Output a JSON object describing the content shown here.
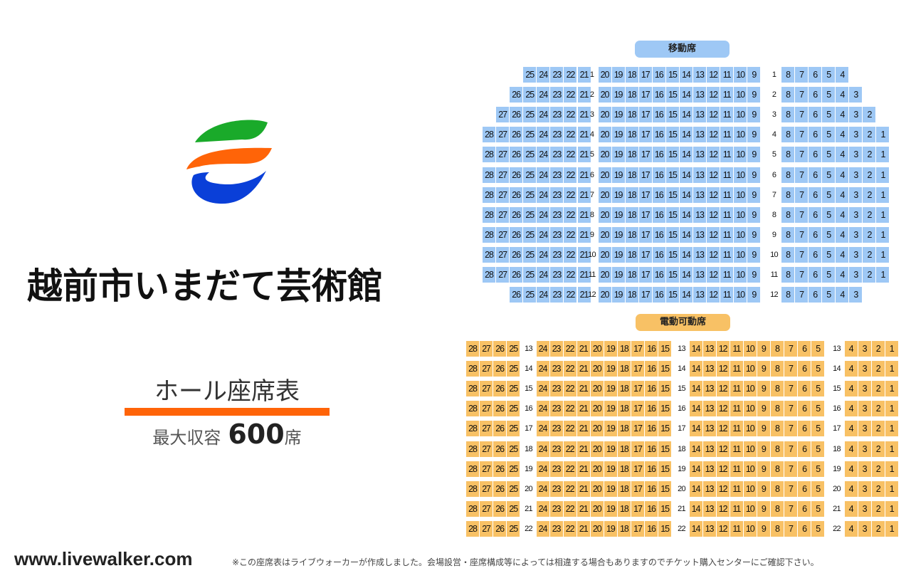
{
  "venue": {
    "name": "越前市いまだて芸術館",
    "chart_heading": "ホール座席表",
    "capacity_label": "最大収容",
    "capacity_number": "600",
    "capacity_unit": "席"
  },
  "colors": {
    "movable_seat": "#9ec8f5",
    "electric_seat": "#f8c165",
    "accent_underline": "#ff6408",
    "logo_green": "#1aaa2a",
    "logo_orange": "#ff6408",
    "logo_blue": "#0a3fd8"
  },
  "logo": {
    "icon": "venue-logo-icon"
  },
  "sections": {
    "movable": {
      "label": "移動席",
      "rows": [
        {
          "row": "1",
          "left": [
            "25",
            "24",
            "23",
            "22",
            "21"
          ],
          "center": [
            "20",
            "19",
            "18",
            "17",
            "16",
            "15",
            "14",
            "13",
            "12",
            "11",
            "10",
            "9"
          ],
          "right": [
            "8",
            "7",
            "6",
            "5",
            "4"
          ]
        },
        {
          "row": "2",
          "left": [
            "26",
            "25",
            "24",
            "23",
            "22",
            "21"
          ],
          "center": [
            "20",
            "19",
            "18",
            "17",
            "16",
            "15",
            "14",
            "13",
            "12",
            "11",
            "10",
            "9"
          ],
          "right": [
            "8",
            "7",
            "6",
            "5",
            "4",
            "3"
          ]
        },
        {
          "row": "3",
          "left": [
            "27",
            "26",
            "25",
            "24",
            "23",
            "22",
            "21"
          ],
          "center": [
            "20",
            "19",
            "18",
            "17",
            "16",
            "15",
            "14",
            "13",
            "12",
            "11",
            "10",
            "9"
          ],
          "right": [
            "8",
            "7",
            "6",
            "5",
            "4",
            "3",
            "2"
          ]
        },
        {
          "row": "4",
          "left": [
            "28",
            "27",
            "26",
            "25",
            "24",
            "23",
            "22",
            "21"
          ],
          "center": [
            "20",
            "19",
            "18",
            "17",
            "16",
            "15",
            "14",
            "13",
            "12",
            "11",
            "10",
            "9"
          ],
          "right": [
            "8",
            "7",
            "6",
            "5",
            "4",
            "3",
            "2",
            "1"
          ]
        },
        {
          "row": "5",
          "left": [
            "28",
            "27",
            "26",
            "25",
            "24",
            "23",
            "22",
            "21"
          ],
          "center": [
            "20",
            "19",
            "18",
            "17",
            "16",
            "15",
            "14",
            "13",
            "12",
            "11",
            "10",
            "9"
          ],
          "right": [
            "8",
            "7",
            "6",
            "5",
            "4",
            "3",
            "2",
            "1"
          ]
        },
        {
          "row": "6",
          "left": [
            "28",
            "27",
            "26",
            "25",
            "24",
            "23",
            "22",
            "21"
          ],
          "center": [
            "20",
            "19",
            "18",
            "17",
            "16",
            "15",
            "14",
            "13",
            "12",
            "11",
            "10",
            "9"
          ],
          "right": [
            "8",
            "7",
            "6",
            "5",
            "4",
            "3",
            "2",
            "1"
          ]
        },
        {
          "row": "7",
          "left": [
            "28",
            "27",
            "26",
            "25",
            "24",
            "23",
            "22",
            "21"
          ],
          "center": [
            "20",
            "19",
            "18",
            "17",
            "16",
            "15",
            "14",
            "13",
            "12",
            "11",
            "10",
            "9"
          ],
          "right": [
            "8",
            "7",
            "6",
            "5",
            "4",
            "3",
            "2",
            "1"
          ]
        },
        {
          "row": "8",
          "left": [
            "28",
            "27",
            "26",
            "25",
            "24",
            "23",
            "22",
            "21"
          ],
          "center": [
            "20",
            "19",
            "18",
            "17",
            "16",
            "15",
            "14",
            "13",
            "12",
            "11",
            "10",
            "9"
          ],
          "right": [
            "8",
            "7",
            "6",
            "5",
            "4",
            "3",
            "2",
            "1"
          ]
        },
        {
          "row": "9",
          "left": [
            "28",
            "27",
            "26",
            "25",
            "24",
            "23",
            "22",
            "21"
          ],
          "center": [
            "20",
            "19",
            "18",
            "17",
            "16",
            "15",
            "14",
            "13",
            "12",
            "11",
            "10",
            "9"
          ],
          "right": [
            "8",
            "7",
            "6",
            "5",
            "4",
            "3",
            "2",
            "1"
          ]
        },
        {
          "row": "10",
          "left": [
            "28",
            "27",
            "26",
            "25",
            "24",
            "23",
            "22",
            "21"
          ],
          "center": [
            "20",
            "19",
            "18",
            "17",
            "16",
            "15",
            "14",
            "13",
            "12",
            "11",
            "10",
            "9"
          ],
          "right": [
            "8",
            "7",
            "6",
            "5",
            "4",
            "3",
            "2",
            "1"
          ]
        },
        {
          "row": "11",
          "left": [
            "28",
            "27",
            "26",
            "25",
            "24",
            "23",
            "22",
            "21"
          ],
          "center": [
            "20",
            "19",
            "18",
            "17",
            "16",
            "15",
            "14",
            "13",
            "12",
            "11",
            "10",
            "9"
          ],
          "right": [
            "8",
            "7",
            "6",
            "5",
            "4",
            "3",
            "2",
            "1"
          ]
        },
        {
          "row": "12",
          "left": [
            "26",
            "25",
            "24",
            "23",
            "22",
            "21"
          ],
          "center": [
            "20",
            "19",
            "18",
            "17",
            "16",
            "15",
            "14",
            "13",
            "12",
            "11",
            "10",
            "9"
          ],
          "right": [
            "8",
            "7",
            "6",
            "5",
            "4",
            "3"
          ]
        }
      ]
    },
    "electric": {
      "label": "電動可動席",
      "row_numbers": [
        "13",
        "14",
        "15",
        "16",
        "17",
        "18",
        "19",
        "20",
        "21",
        "22"
      ],
      "left": [
        "28",
        "27",
        "26",
        "25"
      ],
      "center_a": [
        "24",
        "23",
        "22",
        "21",
        "20",
        "19",
        "18",
        "17",
        "16",
        "15"
      ],
      "center_b": [
        "14",
        "13",
        "12",
        "11",
        "10",
        "9",
        "8",
        "7",
        "6",
        "5"
      ],
      "right": [
        "4",
        "3",
        "2",
        "1"
      ]
    }
  },
  "footer": {
    "url": "www.livewalker.com",
    "disclaimer": "※この座席表はライブウォーカーが作成しました。会場設営・座席構成等によっては相違する場合もありますのでチケット購入センターにご確認下さい。"
  }
}
